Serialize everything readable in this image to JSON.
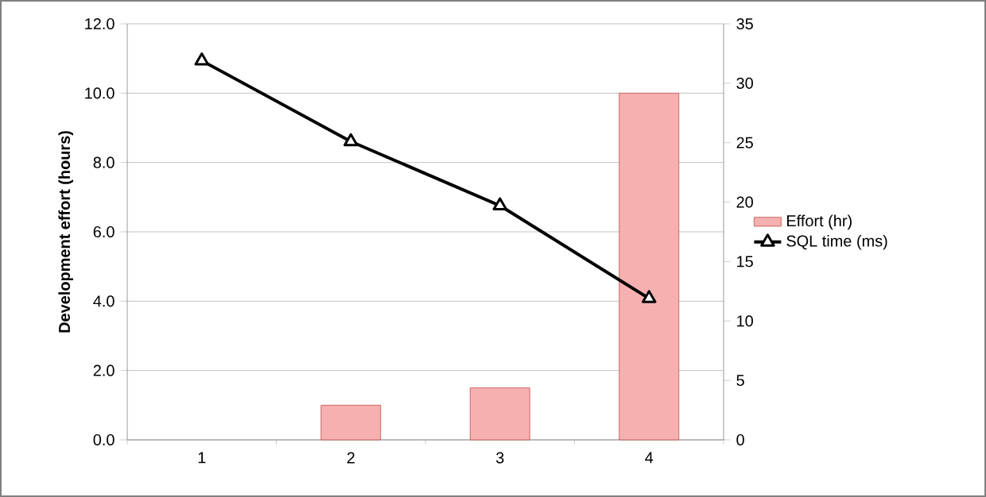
{
  "chart_data": {
    "type": "bar",
    "ylabel": "Development effort (hours)",
    "categories": [
      "1",
      "2",
      "3",
      "4"
    ],
    "series": [
      {
        "name": "Effort (hr)",
        "color": "#f7b0b0",
        "values": [
          null,
          1.0,
          1.5,
          10.0
        ]
      },
      {
        "name": "SQL time (ms)",
        "type": "line",
        "axis": "y2",
        "color": "#000000",
        "marker": "triangle",
        "values": [
          31.9,
          25.1,
          19.7,
          11.9
        ]
      }
    ],
    "ylim": [
      0,
      12
    ],
    "yticks": [
      {
        "value": 0,
        "label": "0.0"
      },
      {
        "value": 2,
        "label": "2.0"
      },
      {
        "value": 4,
        "label": "4.0"
      },
      {
        "value": 6,
        "label": "6.0"
      },
      {
        "value": 8,
        "label": "8.0"
      },
      {
        "value": 10,
        "label": "10.0"
      },
      {
        "value": 12,
        "label": "12.0"
      }
    ],
    "y2lim": [
      0,
      35
    ],
    "y2ticks": [
      0,
      5,
      10,
      15,
      20,
      25,
      30,
      35
    ],
    "grid": "y",
    "legend": "right"
  }
}
